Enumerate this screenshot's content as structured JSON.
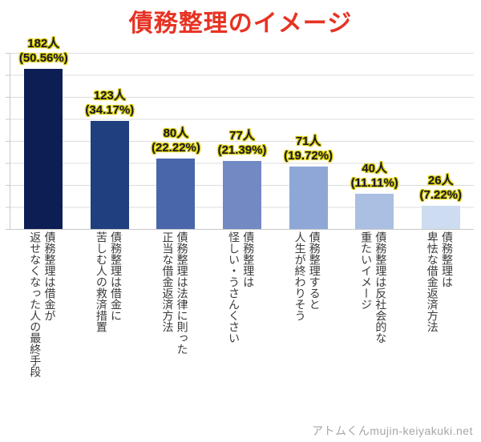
{
  "title": {
    "text": "債務整理のイメージ",
    "color": "#e73323"
  },
  "watermark": "アトムくんmujin-keiyakuki.net",
  "colors": {
    "value_label_text": "#15152d",
    "value_label_glow": "#d9cc00",
    "gridline": "#dcdcdc",
    "axis": "#c9c9c9"
  },
  "chart_data": {
    "type": "bar",
    "title": "債務整理のイメージ",
    "xlabel": "",
    "ylabel": "",
    "ylim": [
      0,
      200
    ],
    "gridline_step": 25,
    "grid": true,
    "legend": false,
    "categories": [
      "債務整理は借金が返せなくなった人の最終手段",
      "債務整理は借金に苦しむ人の救済措置",
      "債務整理は法律に則った正当な借金返済方法",
      "債務整理は怪しい・うさんくさい",
      "債務整理すると人生が終わりそう",
      "債務整理は反社会的な重たいイメージ",
      "債務整理は卑怯な借金返済方法"
    ],
    "category_lines": [
      [
        "債務整理は借金が",
        "返せなくなった人の最終手段"
      ],
      [
        "債務整理は借金に",
        "苦しむ人の救済措置"
      ],
      [
        "債務整理は法律に則った",
        "正当な借金返済方法"
      ],
      [
        "債務整理は",
        "怪しい・うさんくさい"
      ],
      [
        "債務整理すると",
        "人生が終わりそう"
      ],
      [
        "債務整理は反社会的な",
        "重たいイメージ"
      ],
      [
        "債務整理は",
        "卑怯な借金返済方法"
      ]
    ],
    "values": [
      182,
      123,
      80,
      77,
      71,
      40,
      26
    ],
    "counts": [
      "182人",
      "123人",
      "80人",
      "77人",
      "71人",
      "40人",
      "26人"
    ],
    "percents": [
      "(50.56%)",
      "(34.17%)",
      "(22.22%)",
      "(21.39%)",
      "(19.72%)",
      "(11.11%)",
      "(7.22%)"
    ],
    "bar_colors": [
      "#0d1e55",
      "#203f7f",
      "#4a66ab",
      "#7289c4",
      "#8ea7d6",
      "#aabfe2",
      "#cddcf0"
    ]
  }
}
